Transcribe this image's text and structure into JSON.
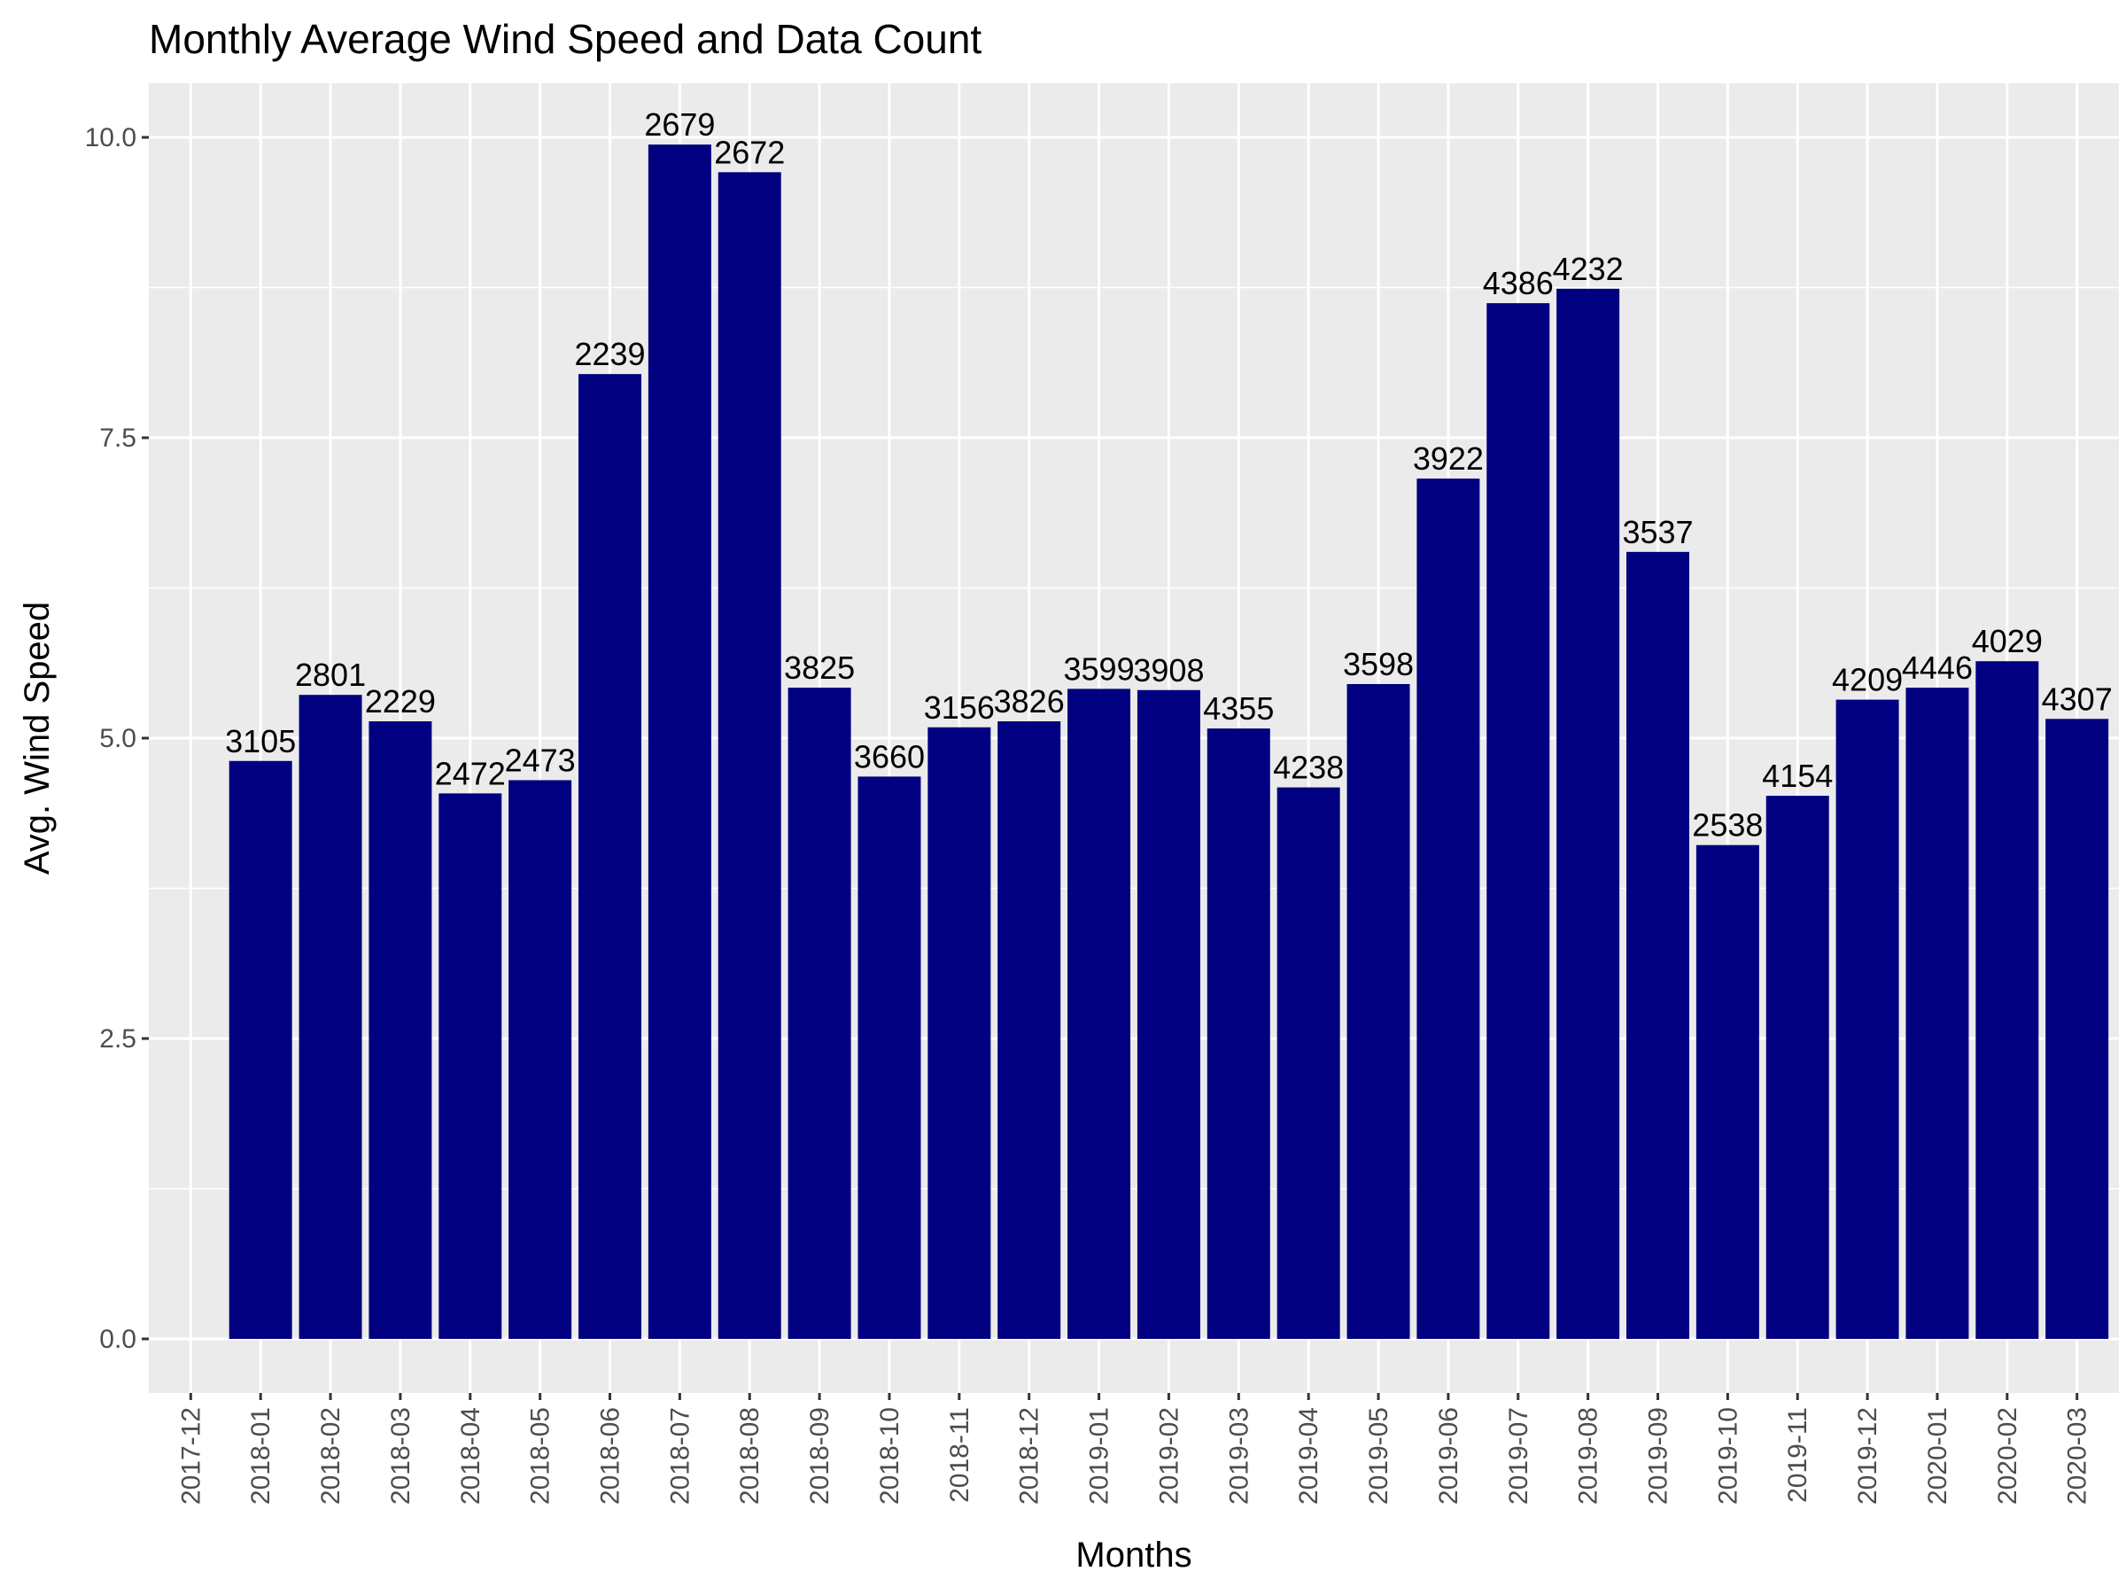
{
  "chart_data": {
    "type": "bar",
    "title": "Monthly Average Wind Speed and Data Count",
    "xlabel": "Months",
    "ylabel": "Avg. Wind Speed",
    "ylim": [
      -0.45,
      10.45
    ],
    "y_ticks": [
      0.0,
      2.5,
      5.0,
      7.5,
      10.0
    ],
    "y_tick_labels": [
      "0.0",
      "2.5",
      "5.0",
      "7.5",
      "10.0"
    ],
    "grid": true,
    "bar_color": "#000080",
    "panel_background": "#ebebeb",
    "categories": [
      "2017-12",
      "2018-01",
      "2018-02",
      "2018-03",
      "2018-04",
      "2018-05",
      "2018-06",
      "2018-07",
      "2018-08",
      "2018-09",
      "2018-10",
      "2018-11",
      "2018-12",
      "2019-01",
      "2019-02",
      "2019-03",
      "2019-04",
      "2019-05",
      "2019-06",
      "2019-07",
      "2019-08",
      "2019-09",
      "2019-10",
      "2019-11",
      "2019-12",
      "2020-01",
      "2020-02",
      "2020-03"
    ],
    "values": [
      null,
      4.81,
      5.36,
      5.14,
      4.54,
      4.65,
      8.03,
      9.94,
      9.71,
      5.42,
      4.68,
      5.09,
      5.14,
      5.41,
      5.4,
      5.08,
      4.59,
      5.45,
      7.16,
      8.62,
      8.74,
      6.55,
      4.11,
      4.52,
      5.32,
      5.42,
      5.64,
      5.16
    ],
    "labels": [
      "",
      "3105",
      "2801",
      "2229",
      "2472",
      "2473",
      "2239",
      "2679",
      "2672",
      "3825",
      "3660",
      "3156",
      "3826",
      "3599",
      "3908",
      "4355",
      "4238",
      "3598",
      "3922",
      "4386",
      "4232",
      "3537",
      "2538",
      "4154",
      "4209",
      "4446",
      "4029",
      "4307"
    ]
  }
}
